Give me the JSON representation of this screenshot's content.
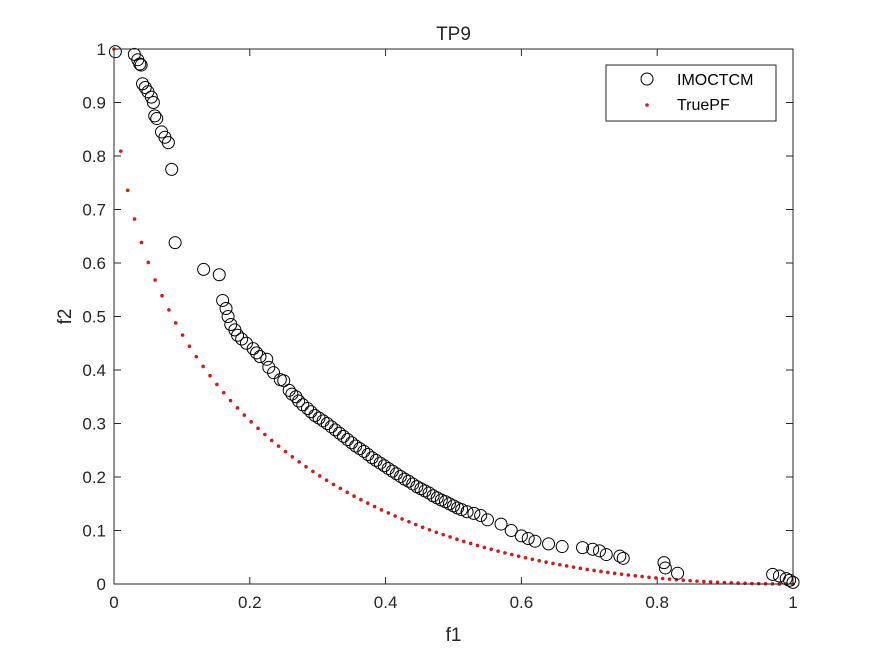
{
  "chart_data": {
    "type": "scatter",
    "title": "TP9",
    "xlabel": "f1",
    "ylabel": "f2",
    "xlim": [
      0,
      1
    ],
    "ylim": [
      0,
      1
    ],
    "xticks": [
      0,
      0.2,
      0.4,
      0.6,
      0.8,
      1
    ],
    "xtick_labels": [
      "0",
      "0.2",
      "0.4",
      "0.6",
      "0.8",
      "1"
    ],
    "yticks": [
      0,
      0.1,
      0.2,
      0.3,
      0.4,
      0.5,
      0.6,
      0.7,
      0.8,
      0.9,
      1
    ],
    "ytick_labels": [
      "0",
      "0.1",
      "0.2",
      "0.3",
      "0.4",
      "0.5",
      "0.6",
      "0.7",
      "0.8",
      "0.9",
      "1"
    ],
    "grid": false,
    "legend": {
      "position": "top-right",
      "entries": [
        "IMOCTCM",
        "TruePF"
      ]
    },
    "series": [
      {
        "name": "IMOCTCM",
        "marker": "open-circle",
        "color": "#000000",
        "points": [
          [
            0.002,
            0.995
          ],
          [
            0.03,
            0.99
          ],
          [
            0.035,
            0.98
          ],
          [
            0.038,
            0.972
          ],
          [
            0.04,
            0.97
          ],
          [
            0.042,
            0.935
          ],
          [
            0.046,
            0.928
          ],
          [
            0.05,
            0.92
          ],
          [
            0.055,
            0.91
          ],
          [
            0.058,
            0.9
          ],
          [
            0.06,
            0.875
          ],
          [
            0.063,
            0.87
          ],
          [
            0.07,
            0.845
          ],
          [
            0.075,
            0.835
          ],
          [
            0.08,
            0.825
          ],
          [
            0.085,
            0.775
          ],
          [
            0.09,
            0.638
          ],
          [
            0.132,
            0.588
          ],
          [
            0.155,
            0.578
          ],
          [
            0.16,
            0.53
          ],
          [
            0.165,
            0.515
          ],
          [
            0.168,
            0.5
          ],
          [
            0.172,
            0.485
          ],
          [
            0.178,
            0.475
          ],
          [
            0.182,
            0.465
          ],
          [
            0.188,
            0.458
          ],
          [
            0.195,
            0.45
          ],
          [
            0.205,
            0.44
          ],
          [
            0.21,
            0.432
          ],
          [
            0.215,
            0.425
          ],
          [
            0.225,
            0.42
          ],
          [
            0.228,
            0.405
          ],
          [
            0.235,
            0.395
          ],
          [
            0.245,
            0.382
          ],
          [
            0.25,
            0.38
          ],
          [
            0.258,
            0.362
          ],
          [
            0.262,
            0.355
          ],
          [
            0.268,
            0.35
          ],
          [
            0.272,
            0.342
          ],
          [
            0.278,
            0.335
          ],
          [
            0.285,
            0.328
          ],
          [
            0.29,
            0.322
          ],
          [
            0.296,
            0.315
          ],
          [
            0.302,
            0.31
          ],
          [
            0.308,
            0.305
          ],
          [
            0.314,
            0.3
          ],
          [
            0.32,
            0.294
          ],
          [
            0.326,
            0.288
          ],
          [
            0.332,
            0.282
          ],
          [
            0.338,
            0.276
          ],
          [
            0.344,
            0.27
          ],
          [
            0.35,
            0.264
          ],
          [
            0.356,
            0.258
          ],
          [
            0.362,
            0.253
          ],
          [
            0.368,
            0.248
          ],
          [
            0.374,
            0.242
          ],
          [
            0.38,
            0.236
          ],
          [
            0.386,
            0.231
          ],
          [
            0.392,
            0.226
          ],
          [
            0.398,
            0.221
          ],
          [
            0.404,
            0.216
          ],
          [
            0.41,
            0.211
          ],
          [
            0.416,
            0.206
          ],
          [
            0.422,
            0.201
          ],
          [
            0.428,
            0.196
          ],
          [
            0.434,
            0.192
          ],
          [
            0.44,
            0.187
          ],
          [
            0.446,
            0.182
          ],
          [
            0.452,
            0.178
          ],
          [
            0.458,
            0.174
          ],
          [
            0.464,
            0.17
          ],
          [
            0.47,
            0.165
          ],
          [
            0.476,
            0.161
          ],
          [
            0.482,
            0.157
          ],
          [
            0.488,
            0.154
          ],
          [
            0.494,
            0.15
          ],
          [
            0.5,
            0.146
          ],
          [
            0.506,
            0.142
          ],
          [
            0.512,
            0.139
          ],
          [
            0.52,
            0.135
          ],
          [
            0.53,
            0.132
          ],
          [
            0.54,
            0.128
          ],
          [
            0.55,
            0.12
          ],
          [
            0.57,
            0.112
          ],
          [
            0.585,
            0.1
          ],
          [
            0.6,
            0.09
          ],
          [
            0.61,
            0.085
          ],
          [
            0.62,
            0.08
          ],
          [
            0.64,
            0.075
          ],
          [
            0.66,
            0.07
          ],
          [
            0.69,
            0.068
          ],
          [
            0.705,
            0.065
          ],
          [
            0.715,
            0.062
          ],
          [
            0.725,
            0.055
          ],
          [
            0.745,
            0.052
          ],
          [
            0.75,
            0.048
          ],
          [
            0.81,
            0.04
          ],
          [
            0.812,
            0.03
          ],
          [
            0.83,
            0.02
          ],
          [
            0.97,
            0.018
          ],
          [
            0.98,
            0.015
          ],
          [
            0.99,
            0.01
          ],
          [
            0.995,
            0.007
          ],
          [
            1.0,
            0.003
          ]
        ]
      },
      {
        "name": "TruePF",
        "marker": "dot",
        "color": "#d21a1a",
        "function": "f2 = (1 - sqrt(f1))^2",
        "x_range": [
          0,
          1
        ],
        "n_points": 100
      }
    ]
  }
}
